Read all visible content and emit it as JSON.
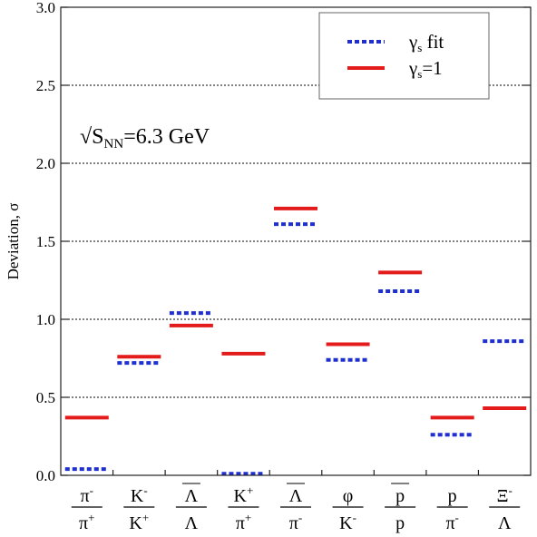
{
  "chart_data": {
    "type": "scatter",
    "title": "",
    "ylabel": "Deviation, σ",
    "xlabel": "",
    "ylim": [
      0,
      3.0
    ],
    "yticks": [
      "0.0",
      "0.5",
      "1.0",
      "1.5",
      "2.0",
      "2.5",
      "3.0"
    ],
    "grid": "horizontal dotted",
    "legend_position": "top-right",
    "annotation": {
      "text": "√S",
      "sub": "NN",
      "rest": "=6.3 GeV"
    },
    "categories": [
      {
        "num": "π",
        "num_sup": "-",
        "den": "π",
        "den_sup": "+",
        "overline": false
      },
      {
        "num": "K",
        "num_sup": "-",
        "den": "K",
        "den_sup": "+",
        "overline": false
      },
      {
        "num": "Λ",
        "num_sup": "",
        "den": "Λ",
        "den_sup": "",
        "overline": true
      },
      {
        "num": "K",
        "num_sup": "+",
        "den": "π",
        "den_sup": "+",
        "overline": false
      },
      {
        "num": "Λ",
        "num_sup": "",
        "den": "π",
        "den_sup": "-",
        "overline": true
      },
      {
        "num": "φ",
        "num_sup": "",
        "den": "K",
        "den_sup": "-",
        "overline": false
      },
      {
        "num": "p",
        "num_sup": "",
        "den": "p",
        "den_sup": "",
        "overline": true
      },
      {
        "num": "p",
        "num_sup": "",
        "den": "π",
        "den_sup": "-",
        "overline": false
      },
      {
        "num": "Ξ",
        "num_sup": "-",
        "den": "Λ",
        "den_sup": "",
        "overline": false
      }
    ],
    "series": [
      {
        "name": "γ",
        "name_sub": "s",
        "name_rest": " fit",
        "style": "dotted",
        "color": "#1f2fd0",
        "values": [
          0.04,
          0.72,
          1.04,
          0.01,
          1.61,
          0.74,
          1.18,
          0.26,
          0.86
        ]
      },
      {
        "name": "γ",
        "name_sub": "s",
        "name_rest": "=1",
        "style": "solid",
        "color": "#e31b1b",
        "values": [
          0.37,
          0.76,
          0.96,
          0.78,
          1.71,
          0.84,
          1.3,
          0.37,
          0.43
        ]
      }
    ]
  }
}
